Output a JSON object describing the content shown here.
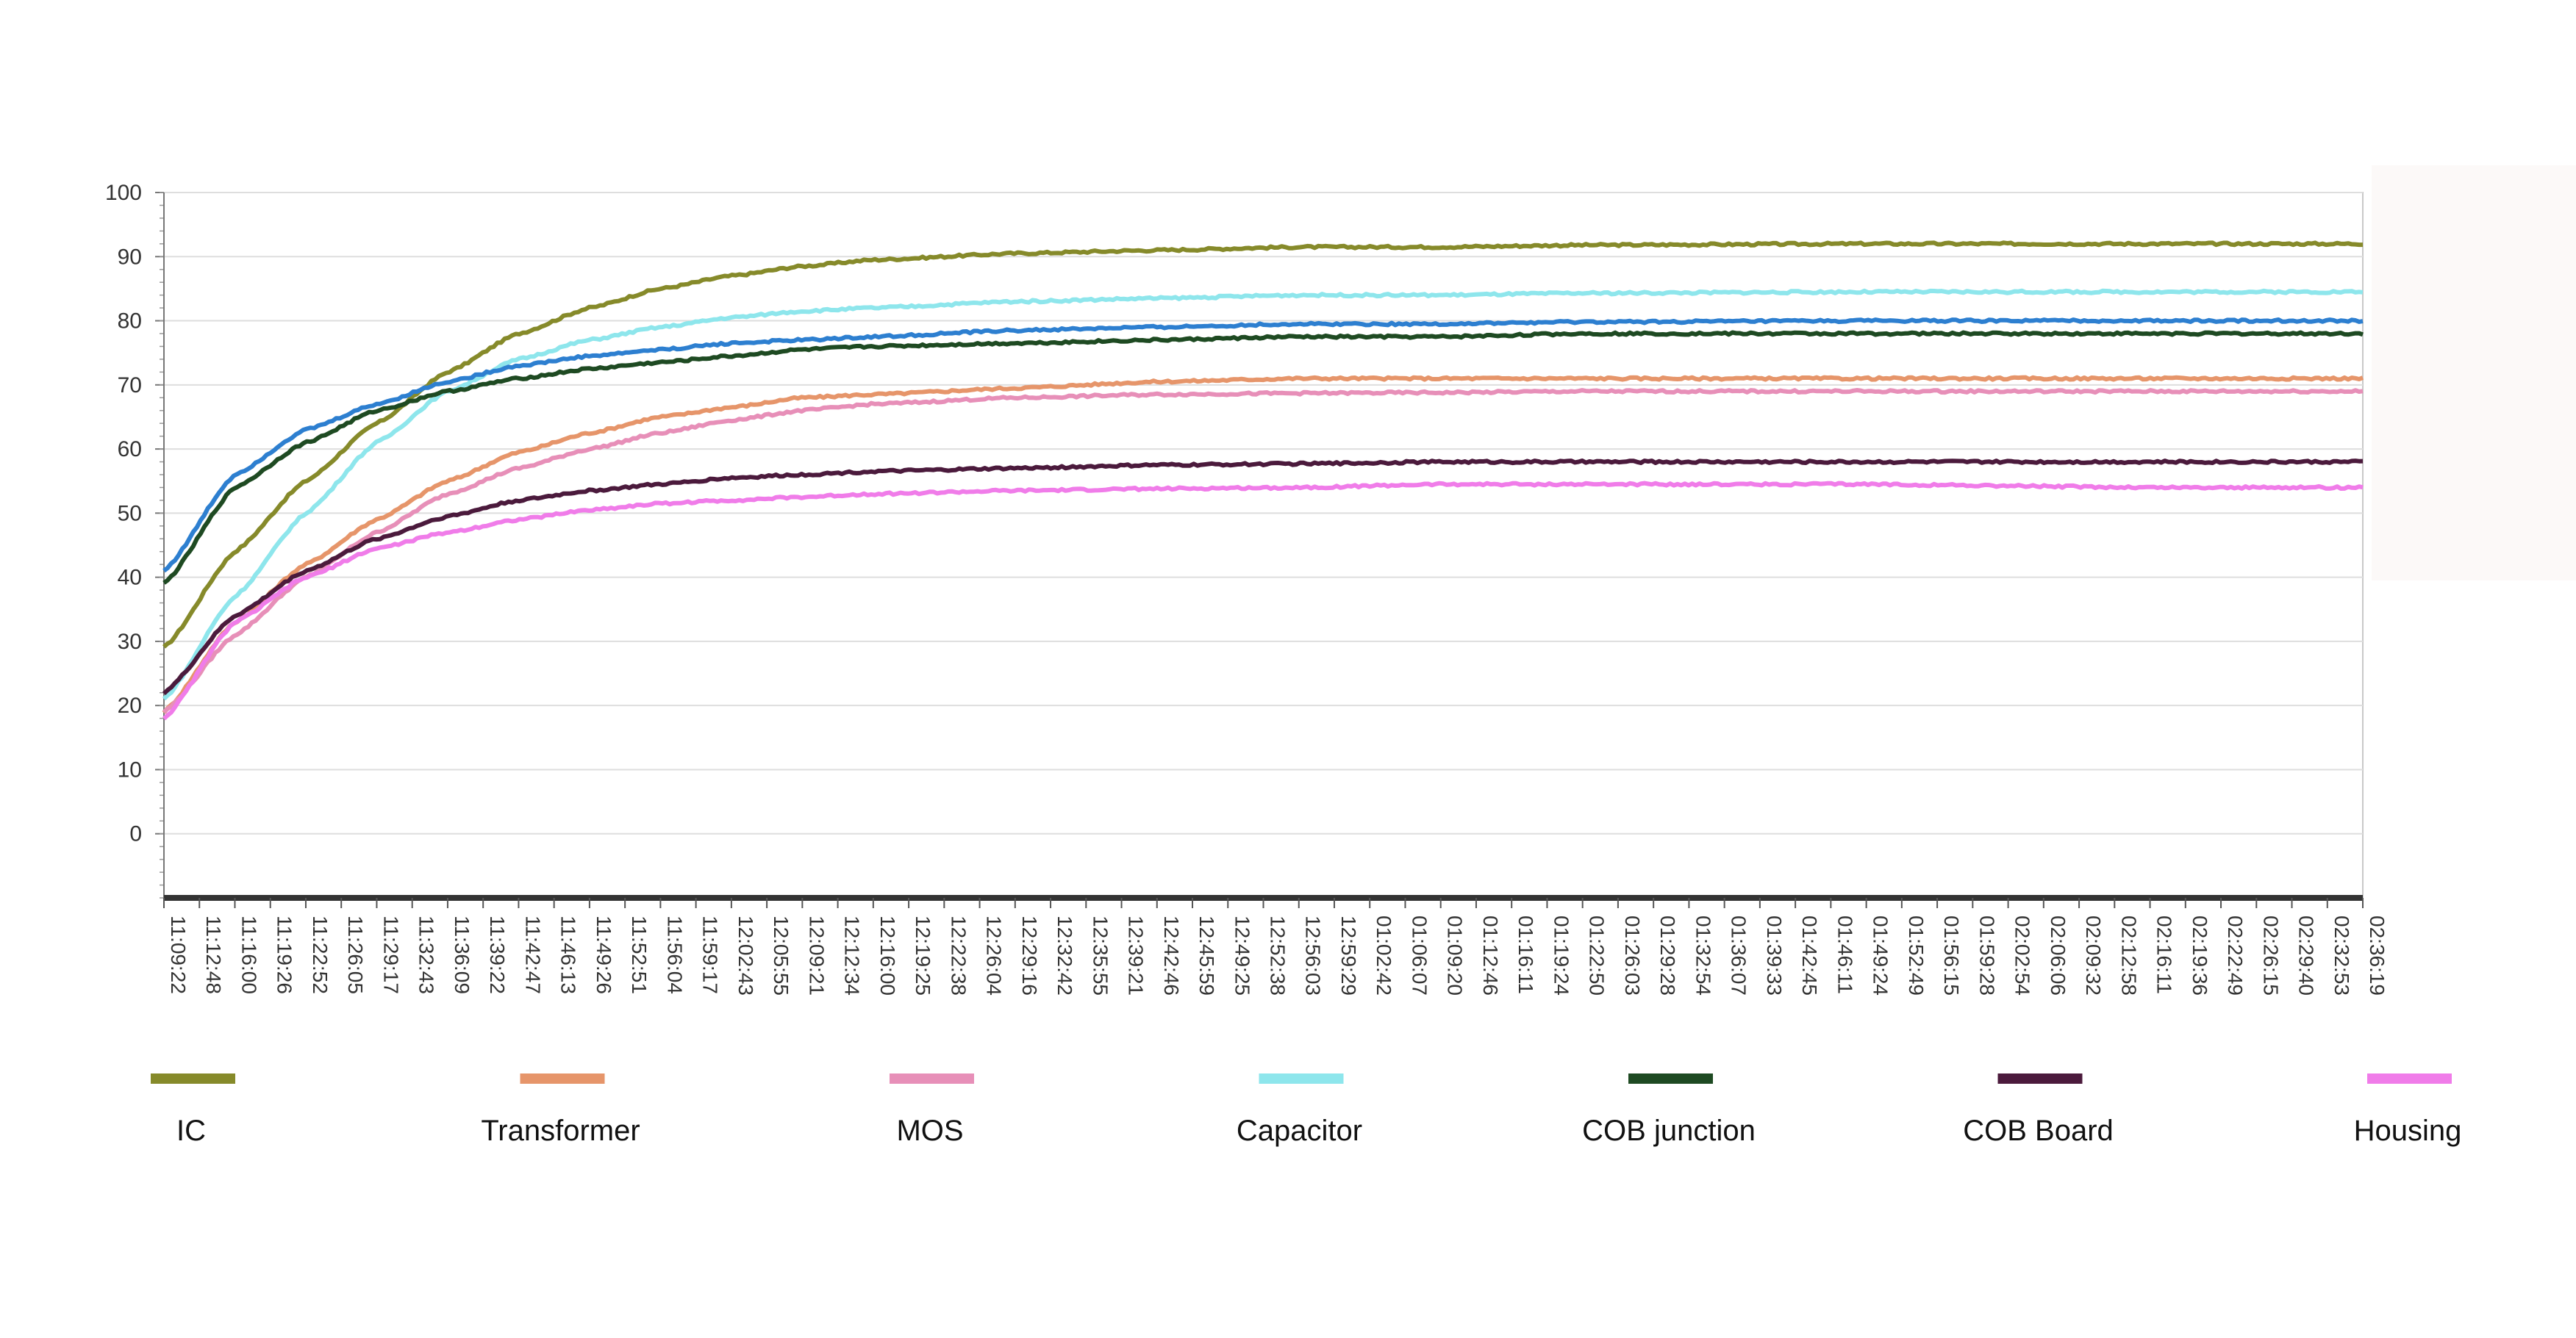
{
  "chart_data": {
    "type": "line",
    "title": "",
    "xlabel": "",
    "ylabel": "",
    "ylim": [
      -10,
      100
    ],
    "y_ticks": [
      100,
      90,
      80,
      70,
      60,
      50,
      40,
      30,
      20,
      10,
      0
    ],
    "grid": "horizontal",
    "legend_position": "bottom",
    "x_tick_labels": [
      "11:09:22",
      "11:12:48",
      "11:16:00",
      "11:19:26",
      "11:22:52",
      "11:26:05",
      "11:29:17",
      "11:32:43",
      "11:36:09",
      "11:39:22",
      "11:42:47",
      "11:46:13",
      "11:49:26",
      "11:52:51",
      "11:56:04",
      "11:59:17",
      "12:02:43",
      "12:05:55",
      "12:09:21",
      "12:12:34",
      "12:16:00",
      "12:19:25",
      "12:22:38",
      "12:26:04",
      "12:29:16",
      "12:32:42",
      "12:35:55",
      "12:39:21",
      "12:42:46",
      "12:45:59",
      "12:49:25",
      "12:52:38",
      "12:56:03",
      "12:59:29",
      "01:02:42",
      "01:06:07",
      "01:09:20",
      "01:12:46",
      "01:16:11",
      "01:19:24",
      "01:22:50",
      "01:26:03",
      "01:29:28",
      "01:32:54",
      "01:36:07",
      "01:39:33",
      "01:42:45",
      "01:46:11",
      "01:49:24",
      "01:52:49",
      "01:56:15",
      "01:59:28",
      "02:02:54",
      "02:06:06",
      "02:09:32",
      "02:12:58",
      "02:16:11",
      "02:19:36",
      "02:22:49",
      "02:26:15",
      "02:29:40",
      "02:32:53",
      "02:36:19"
    ],
    "x_sample_indices": [
      0,
      2,
      4,
      6,
      8,
      10,
      12,
      14,
      16,
      18,
      20,
      24,
      28,
      32,
      36,
      40,
      48,
      56,
      62
    ],
    "series": [
      {
        "name": "IC",
        "color": "#868a2a",
        "values": [
          29,
          44,
          55,
          64,
          72,
          78,
          82,
          85,
          87,
          88.5,
          89.5,
          90.5,
          91,
          91.5,
          91.5,
          91.8,
          92,
          92,
          92
        ]
      },
      {
        "name": "Transformer",
        "color": "#e6956a",
        "values": [
          19,
          33,
          42,
          49,
          55,
          59.5,
          62.5,
          65,
          66.5,
          68,
          68.5,
          69.5,
          70.5,
          71,
          71,
          71,
          71,
          71,
          71
        ]
      },
      {
        "name": "MOS",
        "color": "#e78fb8",
        "values": [
          19,
          31,
          40,
          47,
          53,
          57,
          60,
          62.5,
          64.5,
          66,
          67,
          68,
          68.5,
          68.7,
          68.8,
          69,
          69,
          69,
          69
        ]
      },
      {
        "name": "Capacitor",
        "color": "#8ee6ec",
        "values": [
          21,
          37,
          50,
          61,
          69,
          74,
          77,
          79,
          80.5,
          81.5,
          82,
          83,
          83.5,
          84,
          84,
          84.3,
          84.5,
          84.5,
          84.5
        ]
      },
      {
        "name": "COB  junction",
        "color": "#1e4a22",
        "values": [
          39,
          54,
          61,
          66,
          69,
          71,
          72.5,
          73.5,
          74.5,
          75.5,
          76,
          76.5,
          77,
          77.5,
          77.5,
          78,
          78,
          78,
          78
        ]
      },
      {
        "name": "COB Board",
        "color": "#4b1a3c",
        "values": [
          22,
          34,
          41,
          46,
          49.5,
          52,
          53.5,
          54.5,
          55.5,
          56,
          56.5,
          57,
          57.5,
          57.7,
          58,
          58,
          58,
          58,
          58
        ]
      },
      {
        "name": "Housing",
        "color": "#f07ce9",
        "values": [
          18,
          33,
          40,
          44.5,
          47,
          49,
          50.5,
          51.5,
          52,
          52.5,
          53,
          53.5,
          53.8,
          54,
          54.5,
          54.5,
          54.5,
          54,
          54
        ]
      },
      {
        "name": "",
        "color": "#2d7fd0",
        "values": [
          41,
          56,
          63,
          67,
          70.5,
          73,
          74.5,
          75.5,
          76.5,
          77,
          77.5,
          78.5,
          79,
          79.5,
          79.5,
          79.8,
          80,
          80,
          80
        ]
      }
    ]
  }
}
